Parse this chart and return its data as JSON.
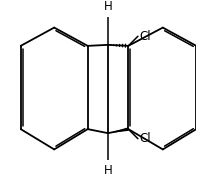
{
  "bg_color": "#ffffff",
  "line_color": "#000000",
  "lw": 1.3,
  "lw_thin": 0.9,
  "label_Cl1": "Cl",
  "label_Cl2": "Cl",
  "label_H1": "H",
  "label_H2": "H",
  "font_size": 8.5,
  "figsize": [
    2.16,
    1.77
  ],
  "dpi": 100,
  "xlim": [
    -3.2,
    3.2
  ],
  "ylim": [
    -2.6,
    2.6
  ]
}
